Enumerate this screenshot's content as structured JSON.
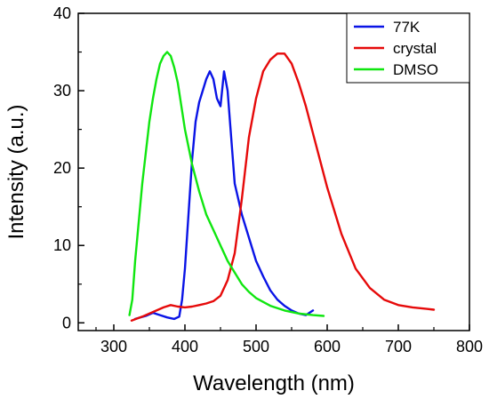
{
  "chart_data": {
    "type": "line",
    "title": "",
    "xlabel": "Wavelength (nm)",
    "ylabel": "Intensity (a.u.)",
    "xlim": [
      250,
      800
    ],
    "ylim": [
      -1,
      40
    ],
    "xticks": [
      300,
      400,
      500,
      600,
      700,
      800
    ],
    "yticks": [
      0,
      10,
      20,
      30,
      40
    ],
    "grid": false,
    "legend": {
      "position": "top-right",
      "entries": [
        "77K",
        "crystal",
        "DMSO"
      ]
    },
    "series": [
      {
        "name": "77K",
        "color": "#0a14e6",
        "x": [
          330,
          345,
          355,
          365,
          375,
          385,
          392,
          396,
          400,
          405,
          410,
          415,
          420,
          425,
          430,
          435,
          440,
          445,
          450,
          455,
          460,
          465,
          470,
          480,
          490,
          500,
          510,
          520,
          530,
          540,
          550,
          560,
          570,
          580
        ],
        "y": [
          0.5,
          0.9,
          1.3,
          1.0,
          0.7,
          0.5,
          0.8,
          3.0,
          7.0,
          14.0,
          21.0,
          26.0,
          28.5,
          30.0,
          31.5,
          32.5,
          31.5,
          29.0,
          28.0,
          32.5,
          30.0,
          24.0,
          18.0,
          14.0,
          11.0,
          8.0,
          6.0,
          4.2,
          3.0,
          2.2,
          1.6,
          1.2,
          1.0,
          1.6
        ]
      },
      {
        "name": "crystal",
        "color": "#e60a0a",
        "x": [
          325,
          340,
          350,
          360,
          370,
          380,
          390,
          400,
          410,
          420,
          430,
          440,
          450,
          460,
          470,
          480,
          490,
          500,
          510,
          520,
          530,
          540,
          550,
          560,
          570,
          580,
          590,
          600,
          620,
          640,
          660,
          680,
          700,
          720,
          740,
          750
        ],
        "y": [
          0.3,
          0.8,
          1.2,
          1.6,
          2.0,
          2.3,
          2.1,
          2.0,
          2.1,
          2.3,
          2.5,
          2.8,
          3.5,
          5.5,
          9.0,
          16.0,
          24.0,
          29.0,
          32.5,
          34.0,
          34.8,
          34.8,
          33.5,
          31.0,
          28.0,
          24.5,
          21.0,
          17.5,
          11.5,
          7.0,
          4.5,
          3.0,
          2.3,
          2.0,
          1.8,
          1.7
        ]
      },
      {
        "name": "DMSO",
        "color": "#10e610",
        "x": [
          322,
          326,
          330,
          335,
          340,
          345,
          350,
          355,
          360,
          365,
          370,
          375,
          380,
          385,
          390,
          395,
          400,
          410,
          420,
          430,
          440,
          450,
          460,
          470,
          480,
          490,
          500,
          520,
          540,
          560,
          580,
          595
        ],
        "y": [
          1.0,
          3.0,
          8.0,
          13.0,
          18.0,
          22.0,
          26.0,
          29.0,
          31.5,
          33.5,
          34.5,
          35.0,
          34.5,
          33.0,
          31.0,
          28.0,
          25.0,
          20.5,
          17.0,
          14.0,
          12.0,
          10.0,
          8.0,
          6.5,
          5.0,
          4.0,
          3.2,
          2.2,
          1.6,
          1.2,
          1.0,
          0.9
        ]
      }
    ]
  }
}
